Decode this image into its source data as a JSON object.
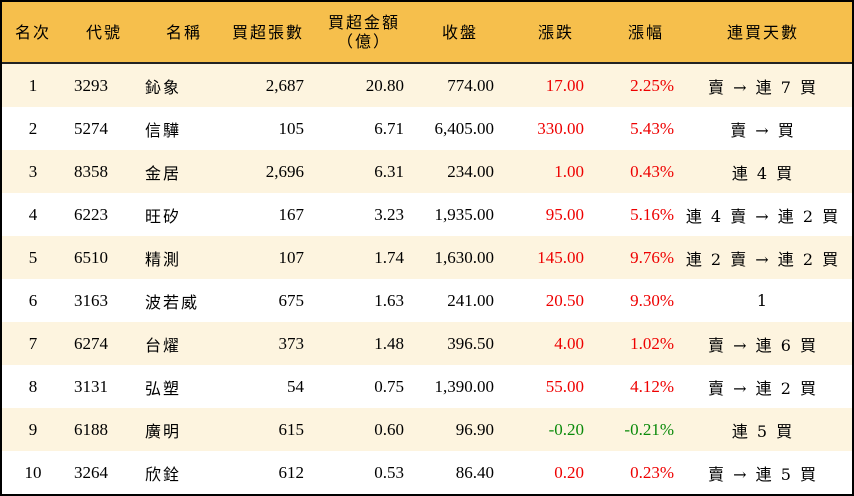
{
  "headers": {
    "rank": "名次",
    "code": "代號",
    "name": "名稱",
    "shares": "買超張數",
    "amount": "買超金額",
    "amount_unit": "（億）",
    "close": "收盤",
    "change": "漲跌",
    "pct": "漲幅",
    "streak": "連買天數"
  },
  "colors": {
    "header_bg": "#F6BF4C",
    "stripe": "#FDF4DF",
    "up": "#ee0000",
    "down": "#0a8a0a"
  },
  "rows": [
    {
      "rank": "1",
      "code": "3293",
      "name": "鈊象",
      "shares": "2,687",
      "amount": "20.80",
      "close": "774.00",
      "change": "17.00",
      "pct": "2.25%",
      "streak": "賣 → 連 7 買",
      "dir": "up"
    },
    {
      "rank": "2",
      "code": "5274",
      "name": "信驊",
      "shares": "105",
      "amount": "6.71",
      "close": "6,405.00",
      "change": "330.00",
      "pct": "5.43%",
      "streak": "賣 → 買",
      "dir": "up"
    },
    {
      "rank": "3",
      "code": "8358",
      "name": "金居",
      "shares": "2,696",
      "amount": "6.31",
      "close": "234.00",
      "change": "1.00",
      "pct": "0.43%",
      "streak": "連 4 買",
      "dir": "up"
    },
    {
      "rank": "4",
      "code": "6223",
      "name": "旺矽",
      "shares": "167",
      "amount": "3.23",
      "close": "1,935.00",
      "change": "95.00",
      "pct": "5.16%",
      "streak": "連 4 賣 → 連 2 買",
      "dir": "up"
    },
    {
      "rank": "5",
      "code": "6510",
      "name": "精測",
      "shares": "107",
      "amount": "1.74",
      "close": "1,630.00",
      "change": "145.00",
      "pct": "9.76%",
      "streak": "連 2 賣 → 連 2 買",
      "dir": "up"
    },
    {
      "rank": "6",
      "code": "3163",
      "name": "波若威",
      "shares": "675",
      "amount": "1.63",
      "close": "241.00",
      "change": "20.50",
      "pct": "9.30%",
      "streak": "1",
      "dir": "up"
    },
    {
      "rank": "7",
      "code": "6274",
      "name": "台燿",
      "shares": "373",
      "amount": "1.48",
      "close": "396.50",
      "change": "4.00",
      "pct": "1.02%",
      "streak": "賣 → 連 6 買",
      "dir": "up"
    },
    {
      "rank": "8",
      "code": "3131",
      "name": "弘塑",
      "shares": "54",
      "amount": "0.75",
      "close": "1,390.00",
      "change": "55.00",
      "pct": "4.12%",
      "streak": "賣 → 連 2 買",
      "dir": "up"
    },
    {
      "rank": "9",
      "code": "6188",
      "name": "廣明",
      "shares": "615",
      "amount": "0.60",
      "close": "96.90",
      "change": "-0.20",
      "pct": "-0.21%",
      "streak": "連 5 買",
      "dir": "down"
    },
    {
      "rank": "10",
      "code": "3264",
      "name": "欣銓",
      "shares": "612",
      "amount": "0.53",
      "close": "86.40",
      "change": "0.20",
      "pct": "0.23%",
      "streak": "賣 → 連 5 買",
      "dir": "up"
    }
  ]
}
